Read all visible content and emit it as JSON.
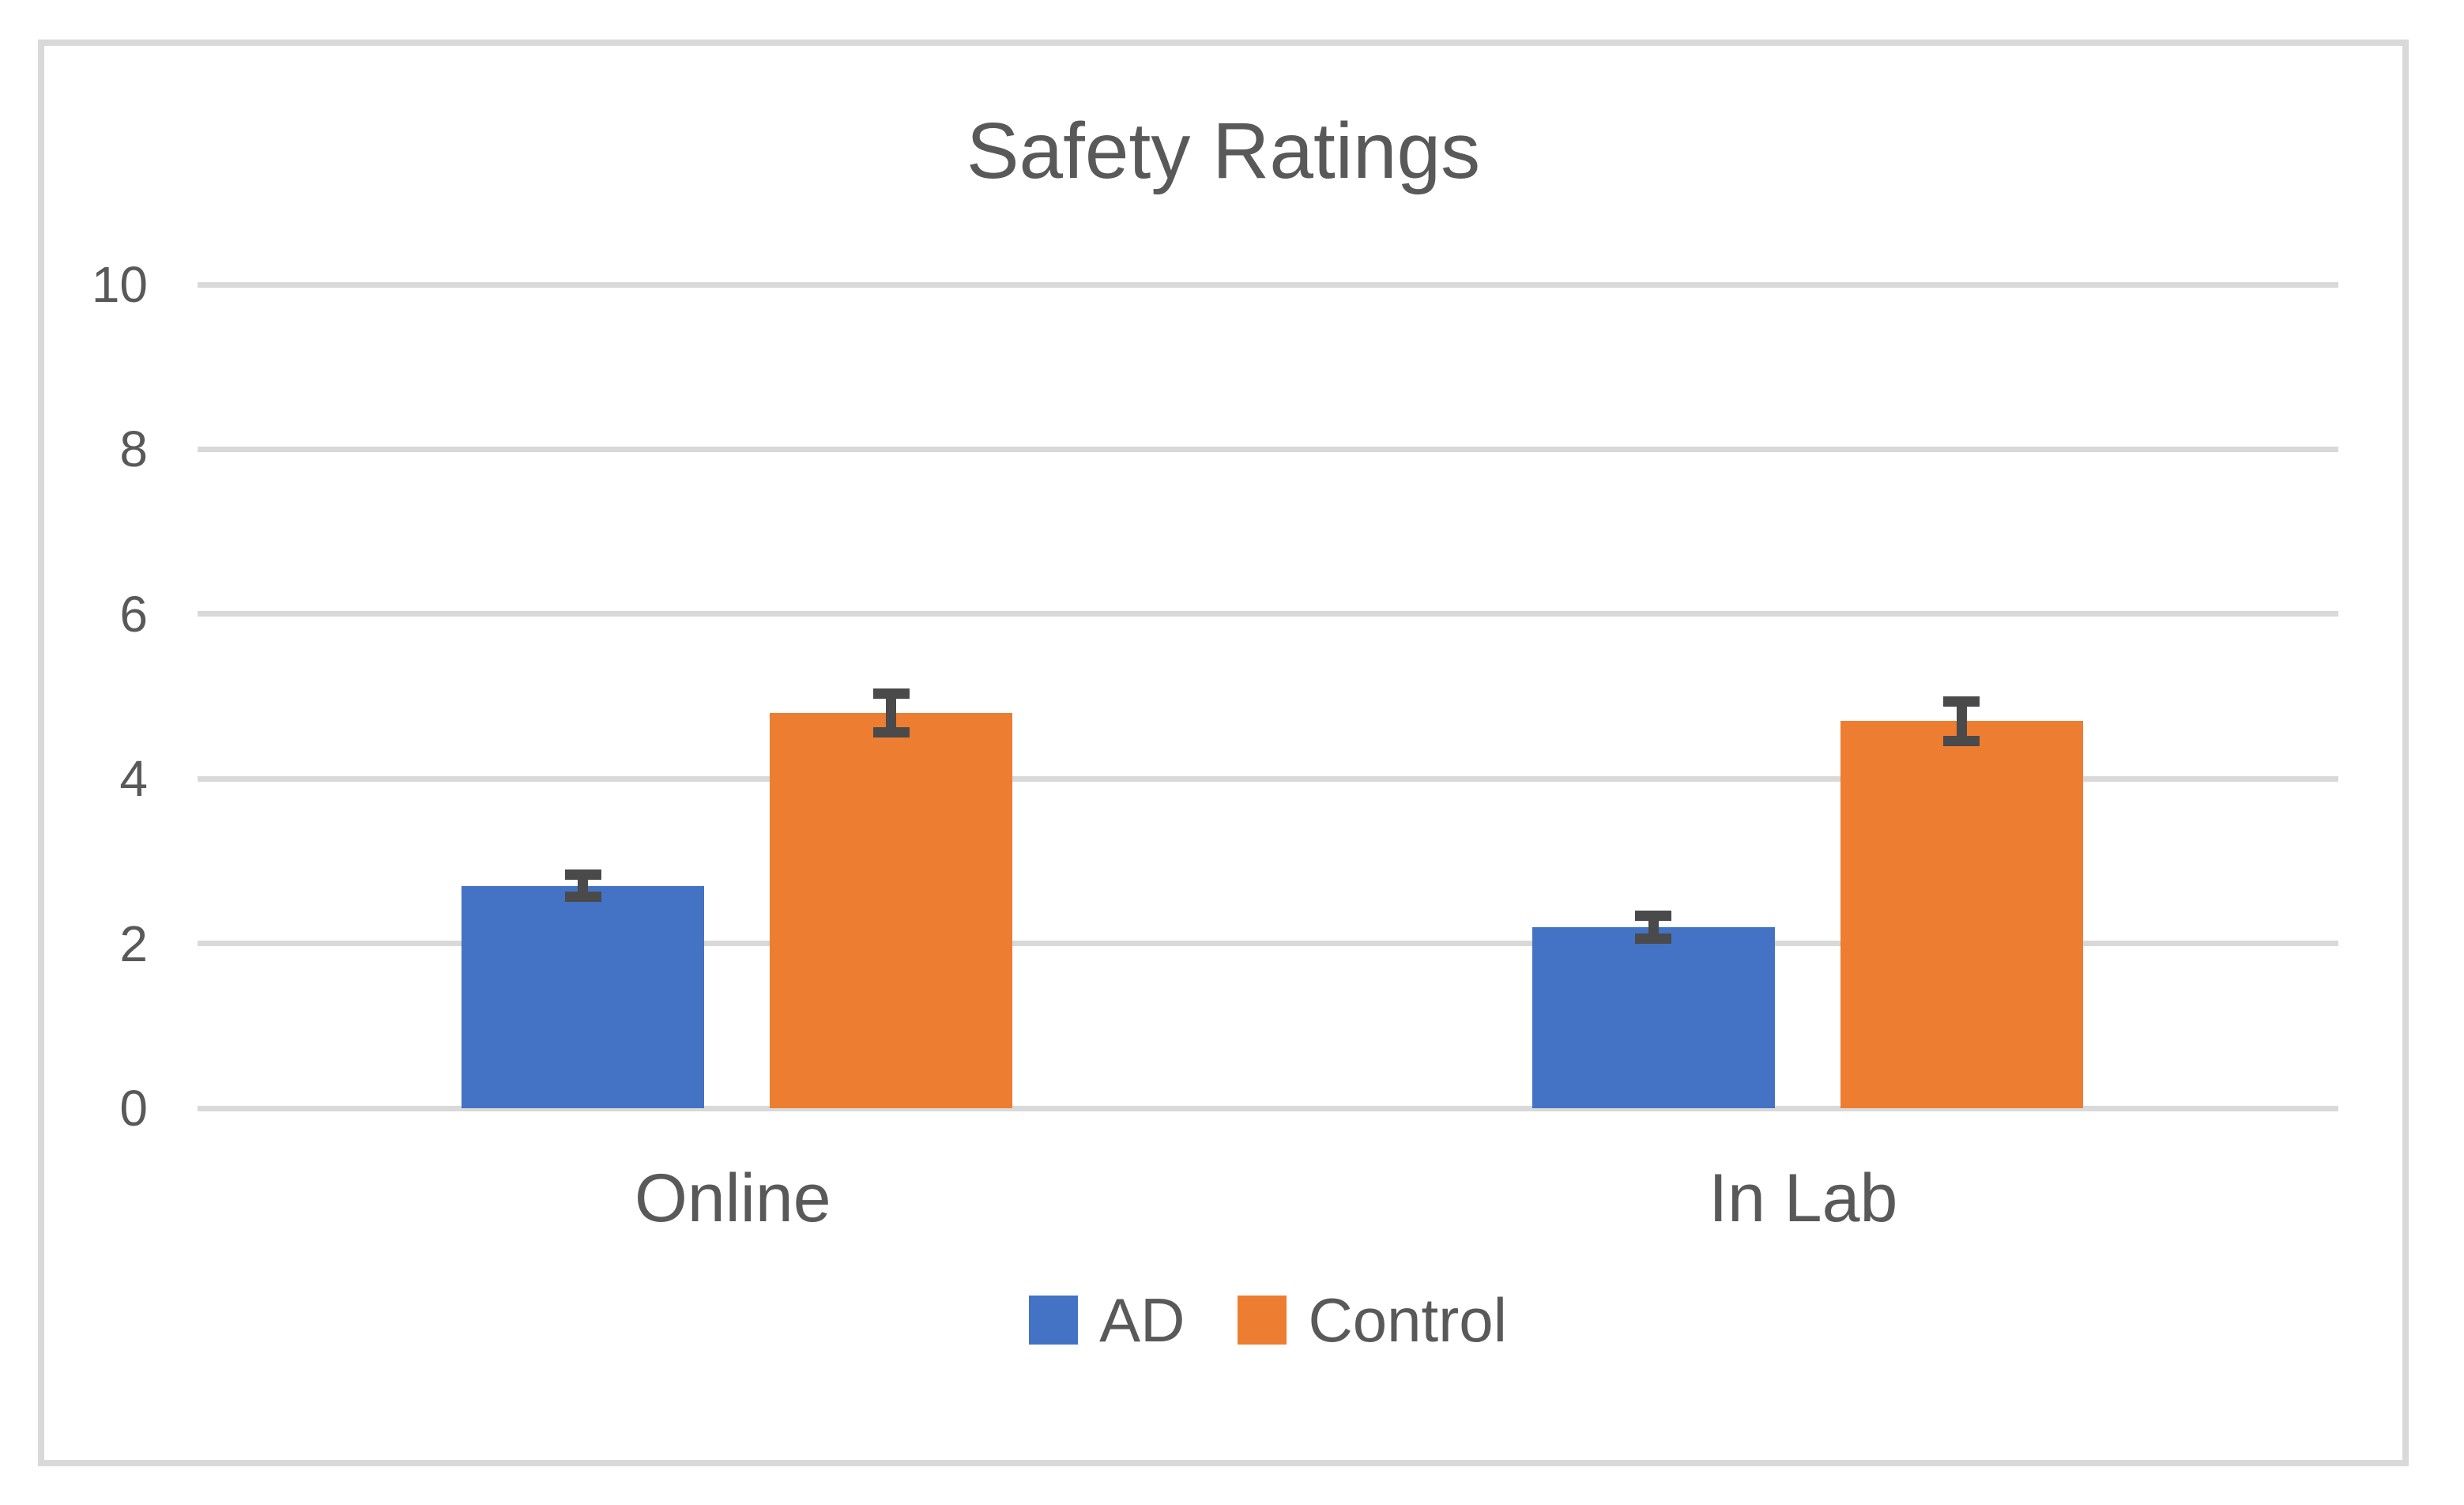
{
  "chart_data": {
    "type": "bar",
    "title": "Safety Ratings",
    "categories": [
      "Online",
      "In Lab"
    ],
    "series": [
      {
        "name": "AD",
        "color": "#4472C4",
        "values": [
          2.7,
          2.2
        ],
        "errors": [
          0.2,
          0.2
        ]
      },
      {
        "name": "Control",
        "color": "#ED7D31",
        "values": [
          4.8,
          4.7
        ],
        "errors": [
          0.3,
          0.3
        ]
      }
    ],
    "ylim": [
      0,
      10
    ],
    "yticks": [
      0,
      2,
      4,
      6,
      8,
      10
    ],
    "grid": true,
    "error_bars": true,
    "legend_position": "bottom"
  },
  "styles": {
    "text_color": "#595959",
    "grid_color": "#D9D9D9",
    "frame_border_color": "#D9D9D9",
    "error_bar_color": "#4A4A4A",
    "background_color": "#FFFFFF",
    "series_colors": {
      "AD": "#4472C4",
      "Control": "#ED7D31"
    }
  }
}
